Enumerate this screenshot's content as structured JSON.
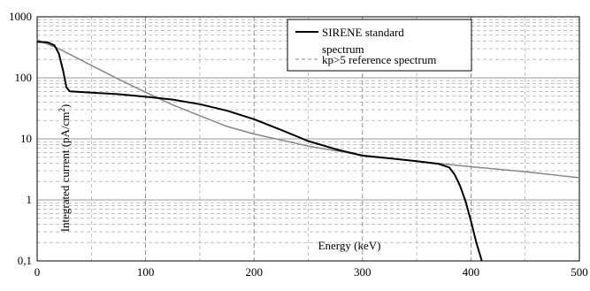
{
  "chart_data": {
    "type": "line",
    "title": "",
    "xlabel": "Energy (keV)",
    "ylabel_main": "Integrated current (pA/cm",
    "ylabel_sup": "2",
    "ylabel_close": ")",
    "xlim": [
      0,
      500
    ],
    "ylim": [
      0.1,
      1000
    ],
    "y_scale": "log",
    "x_ticks": [
      0,
      100,
      200,
      300,
      400,
      500
    ],
    "x_tick_labels": [
      "0",
      "100",
      "200",
      "300",
      "400",
      "500"
    ],
    "y_ticks": [
      0.1,
      1,
      10,
      100,
      1000
    ],
    "y_tick_labels": [
      "0,1",
      "1",
      "10",
      "100",
      "1000"
    ],
    "grid": true,
    "legend_position": "top-right",
    "series": [
      {
        "name_line1": "SIRENE standard",
        "name_line2": "spectrum",
        "color": "#000000",
        "style": "solid",
        "x": [
          0,
          10,
          16,
          20,
          24,
          27,
          30,
          50,
          75,
          100,
          125,
          150,
          175,
          200,
          225,
          250,
          275,
          300,
          325,
          350,
          370,
          380,
          385,
          390,
          395,
          400,
          405,
          410
        ],
        "y": [
          390,
          380,
          340,
          250,
          130,
          70,
          60,
          57,
          54,
          49,
          44,
          37,
          29,
          21,
          14,
          9.2,
          6.8,
          5.3,
          4.8,
          4.3,
          3.9,
          3.4,
          2.6,
          1.7,
          0.95,
          0.45,
          0.2,
          0.1
        ]
      },
      {
        "name": "kp>5 reference spectrum",
        "color": "#888888",
        "style": "solid",
        "x": [
          0,
          20,
          50,
          75,
          100,
          125,
          150,
          175,
          200,
          250,
          300,
          350,
          400,
          450,
          500
        ],
        "y": [
          420,
          300,
          160,
          95,
          58,
          36,
          24,
          16,
          12,
          7.6,
          5.4,
          4.3,
          3.5,
          2.9,
          2.3
        ]
      }
    ]
  }
}
